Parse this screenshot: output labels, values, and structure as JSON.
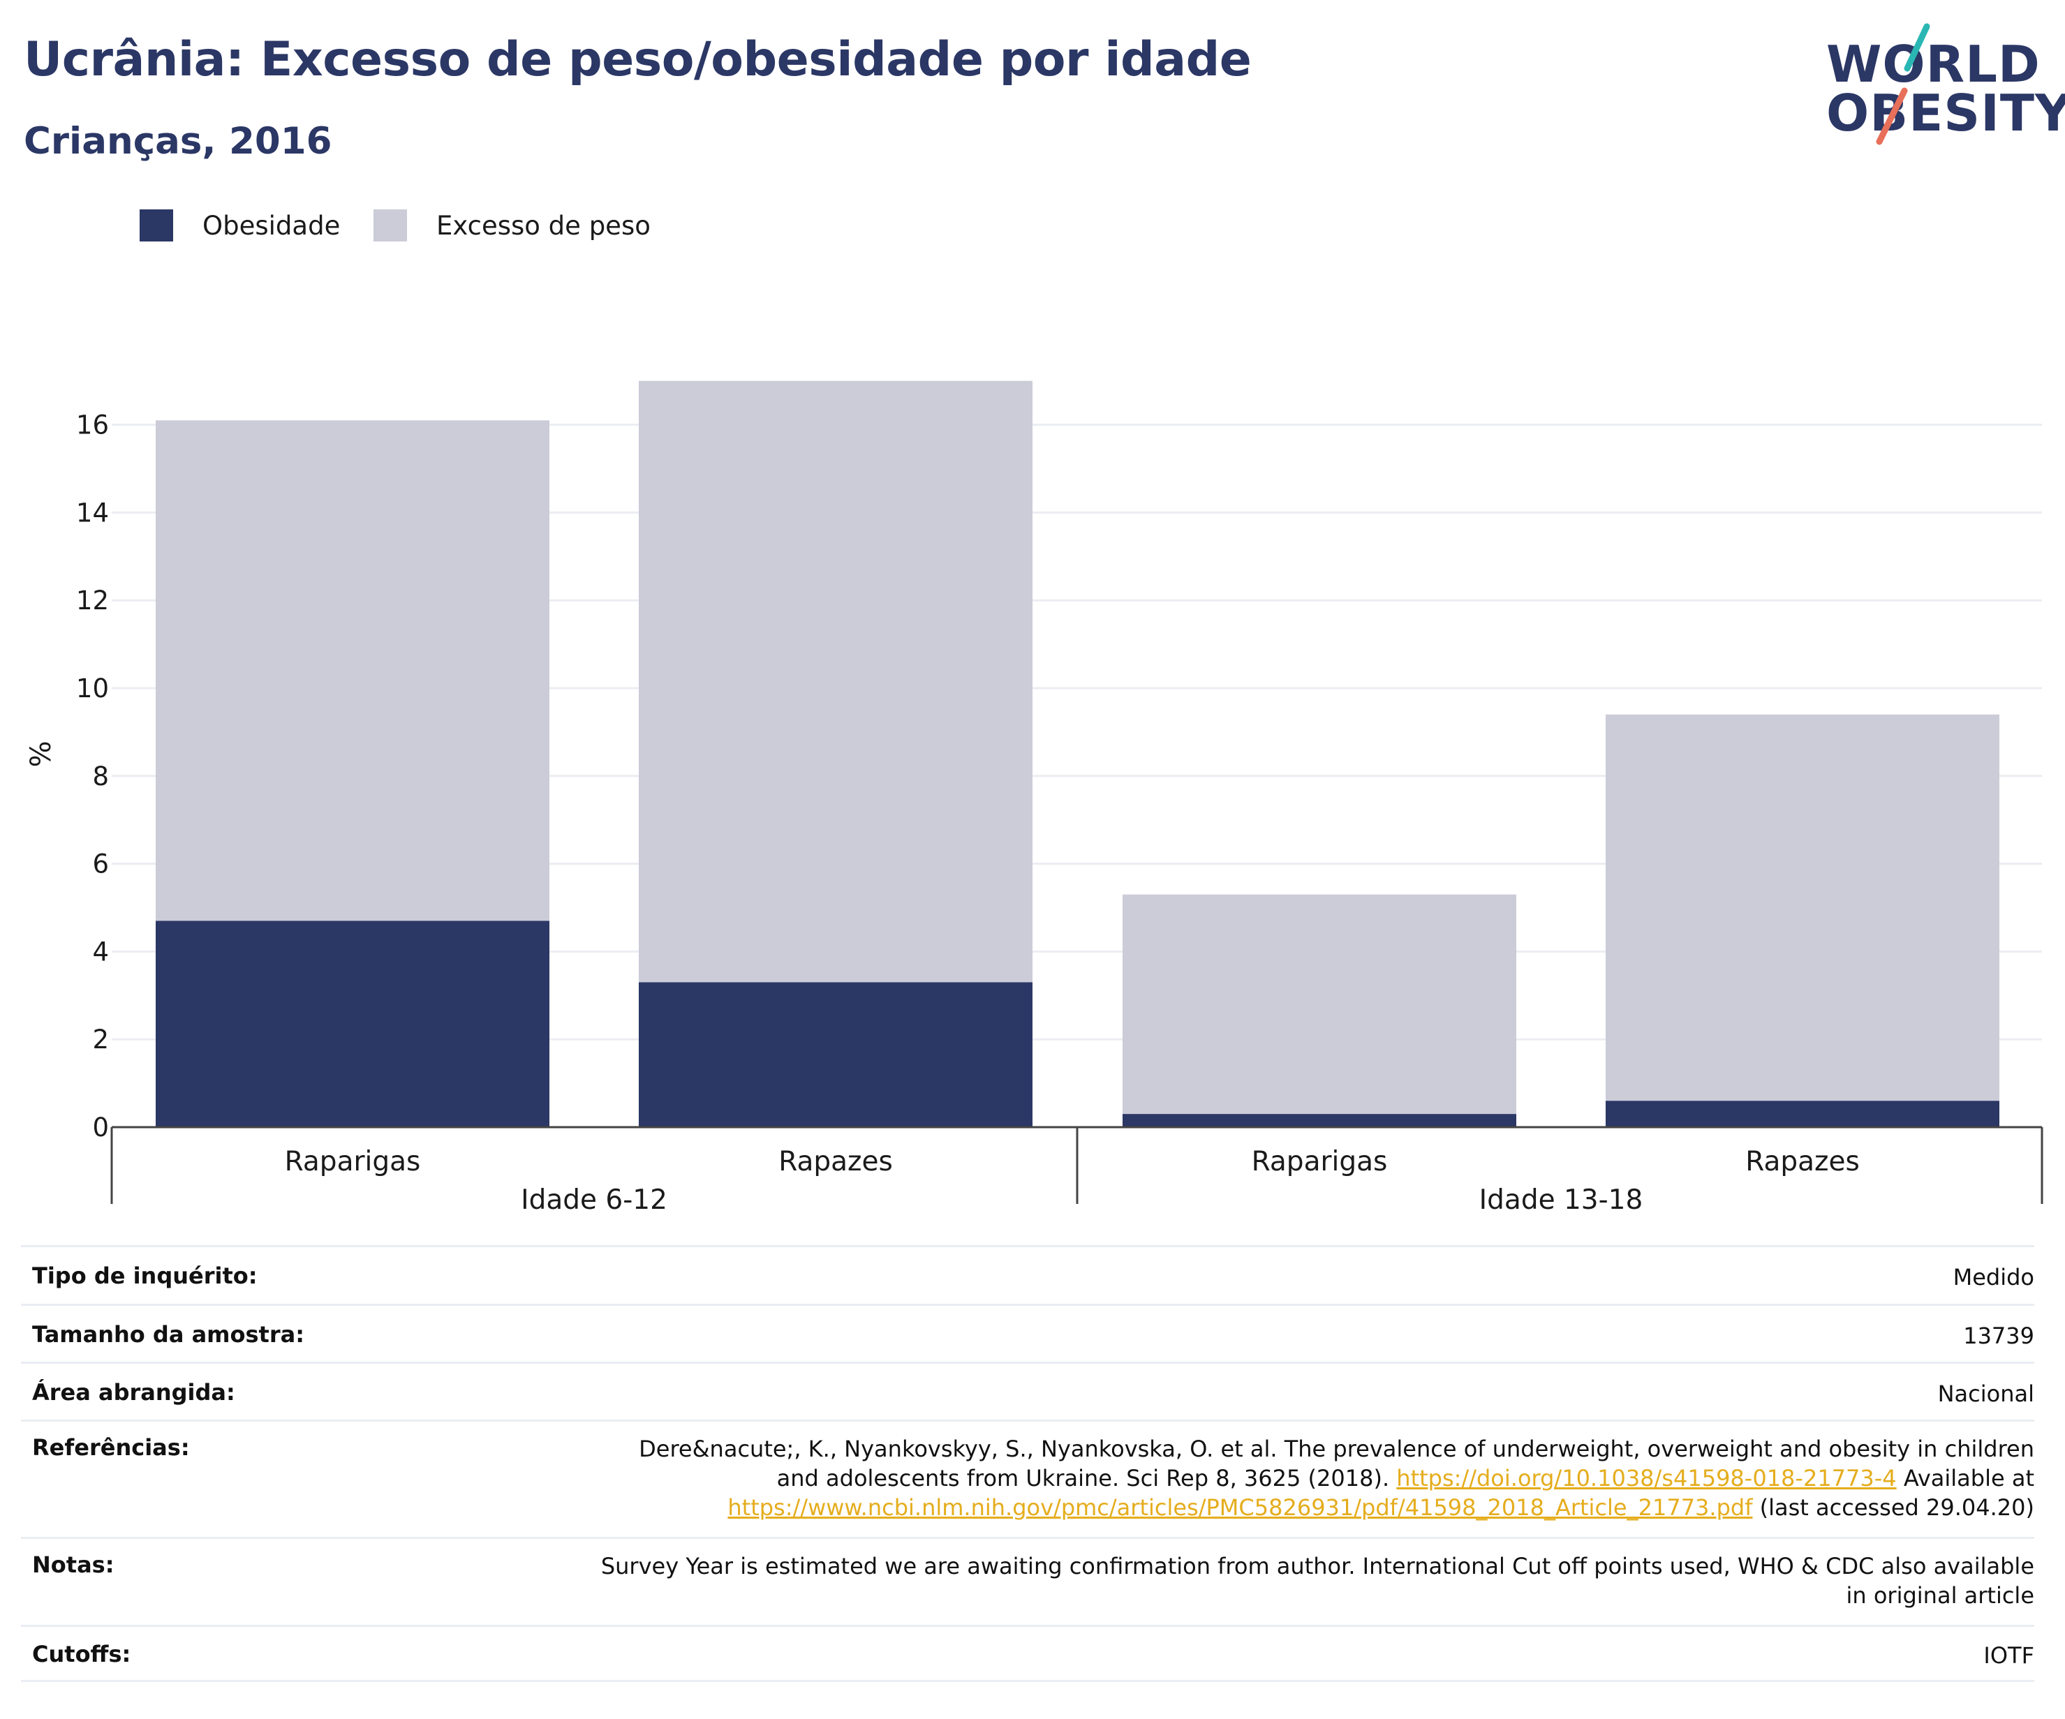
{
  "header": {
    "title": "Ucrânia: Excesso de peso/obesidade por idade",
    "subtitle": "Crianças, 2016"
  },
  "logo": {
    "line1": "WORLD",
    "line2": "OBESITY",
    "slash_colors": [
      "#2ab7b3",
      "#e8705a"
    ]
  },
  "colors": {
    "obesity": "#2b3765",
    "overweight": "#cbccd8",
    "grid": "#ebedf2",
    "link": "#e5ad1d"
  },
  "legend": {
    "items": [
      {
        "label": "Obesidade",
        "color": "#2b3765"
      },
      {
        "label": "Excesso de peso",
        "color": "#cbccd8"
      }
    ]
  },
  "chart_data": {
    "type": "bar",
    "stacked": true,
    "ylabel": "%",
    "ylim": [
      0,
      17
    ],
    "yticks": [
      0,
      2,
      4,
      6,
      8,
      10,
      12,
      14,
      16
    ],
    "grid": true,
    "legend_position": "top-left",
    "groups": [
      {
        "label": "Idade 6-12",
        "categories": [
          "Raparigas",
          "Rapazes"
        ]
      },
      {
        "label": "Idade 13-18",
        "categories": [
          "Raparigas",
          "Rapazes"
        ]
      }
    ],
    "categories": [
      "Raparigas",
      "Rapazes",
      "Raparigas",
      "Rapazes"
    ],
    "series": [
      {
        "name": "Obesidade",
        "values": [
          4.7,
          3.3,
          0.3,
          0.6
        ]
      },
      {
        "name": "Excesso de peso",
        "values": [
          11.4,
          13.7,
          5.0,
          8.8
        ]
      }
    ]
  },
  "info": {
    "rows": [
      {
        "label": "Tipo de inquérito:",
        "value": "Medido"
      },
      {
        "label": "Tamanho da amostra:",
        "value": "13739"
      },
      {
        "label": "Área abrangida:",
        "value": "Nacional"
      },
      {
        "label": "Referências:",
        "value_part1": "Dere&nacute;, K., Nyankovskyy, S., Nyankovska, O. et al. The prevalence of underweight, overweight and obesity in children and adolescents from Ukraine. Sci Rep 8, 3625 (2018).",
        "link1": "https://doi.org/10.1038/s41598-018-21773-4",
        "value_part2": "Available at",
        "link2": "https://www.ncbi.nlm.nih.gov/pmc/articles/PMC5826931/pdf/41598_2018_Article_21773.pdf",
        "value_part3": "(last accessed 29.04.20)"
      },
      {
        "label": "Notas:",
        "value": "Survey Year is estimated we are awaiting confirmation from author. International Cut off points used, WHO & CDC also available in original article"
      },
      {
        "label": "Cutoffs:",
        "value": "IOTF"
      }
    ]
  }
}
